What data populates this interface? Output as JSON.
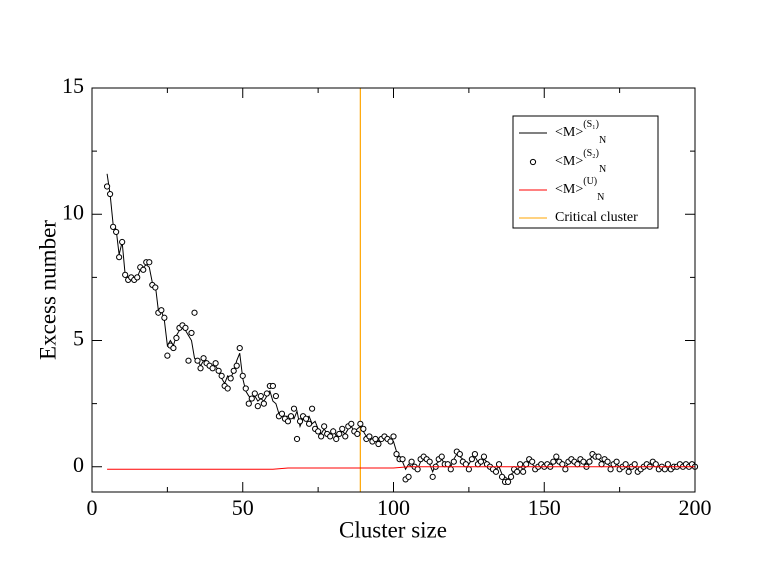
{
  "chart_data": {
    "type": "line",
    "xlabel": "Cluster size",
    "ylabel": "Excess number",
    "xlim": [
      0,
      200
    ],
    "xticks": [
      0,
      50,
      100,
      150,
      200
    ],
    "xminor": [
      25,
      75,
      125,
      175
    ],
    "ylim": [
      -1,
      15
    ],
    "yticks": [
      0,
      5,
      10,
      15
    ],
    "yminor": [
      2.5,
      7.5,
      12.5
    ],
    "legend": "upper right",
    "x": [
      5,
      6,
      7,
      8,
      9,
      10,
      11,
      12,
      13,
      14,
      15,
      16,
      17,
      18,
      19,
      20,
      21,
      22,
      23,
      24,
      25,
      26,
      27,
      28,
      29,
      30,
      31,
      32,
      33,
      34,
      35,
      36,
      37,
      38,
      39,
      40,
      41,
      42,
      43,
      44,
      45,
      46,
      47,
      48,
      49,
      50,
      51,
      52,
      53,
      54,
      55,
      56,
      57,
      58,
      59,
      60,
      61,
      62,
      63,
      64,
      65,
      66,
      67,
      68,
      69,
      70,
      71,
      72,
      73,
      74,
      75,
      76,
      77,
      78,
      79,
      80,
      81,
      82,
      83,
      84,
      85,
      86,
      87,
      88,
      89,
      90,
      91,
      92,
      93,
      94,
      95,
      96,
      97,
      98,
      99,
      100,
      101,
      102,
      103,
      104,
      105,
      106,
      107,
      108,
      109,
      110,
      111,
      112,
      113,
      114,
      115,
      116,
      117,
      118,
      119,
      120,
      121,
      122,
      123,
      124,
      125,
      126,
      127,
      128,
      129,
      130,
      131,
      132,
      133,
      134,
      135,
      136,
      137,
      138,
      139,
      140,
      141,
      142,
      143,
      144,
      145,
      146,
      147,
      148,
      149,
      150,
      151,
      152,
      153,
      154,
      155,
      156,
      157,
      158,
      159,
      160,
      161,
      162,
      163,
      164,
      165,
      166,
      167,
      168,
      169,
      170,
      171,
      172,
      173,
      174,
      175,
      176,
      177,
      178,
      179,
      180,
      181,
      182,
      183,
      184,
      185,
      186,
      187,
      188,
      189,
      190,
      191,
      192,
      193,
      194,
      195,
      196,
      197,
      198,
      199,
      200
    ],
    "series": [
      {
        "name": "<M>",
        "name_sup": "(S₁)",
        "name_sub": "N",
        "style": "line",
        "color": "#000000",
        "values": [
          11.6,
          10.8,
          9.6,
          9.4,
          8.4,
          8.9,
          7.6,
          7.5,
          7.5,
          7.5,
          7.5,
          7.8,
          7.9,
          8.0,
          7.9,
          7.3,
          7.2,
          6.2,
          6.2,
          5.8,
          4.8,
          5.0,
          4.8,
          5.2,
          5.4,
          5.5,
          5.4,
          5.2,
          5.0,
          4.3,
          4.2,
          4.0,
          4.2,
          4.2,
          4.0,
          3.9,
          4.0,
          3.8,
          3.5,
          3.3,
          3.6,
          3.5,
          3.8,
          4.2,
          4.5,
          3.5,
          3.0,
          2.8,
          2.7,
          2.8,
          2.6,
          2.7,
          2.6,
          2.8,
          3.0,
          2.6,
          2.5,
          2.1,
          2.0,
          2.0,
          2.0,
          2.1,
          1.9,
          2.2,
          1.6,
          1.9,
          1.9,
          2.0,
          1.7,
          1.8,
          1.5,
          1.3,
          1.5,
          1.3,
          1.3,
          1.5,
          1.2,
          1.3,
          1.4,
          1.3,
          1.5,
          1.6,
          1.4,
          1.5,
          1.6,
          1.4,
          1.2,
          1.1,
          1.1,
          1.2,
          1.0,
          1.1,
          1.1,
          1.1,
          1.0,
          1.0,
          0.6,
          0.4,
          0.2,
          -0.1,
          0.1,
          0.0,
          0.1,
          -0.1,
          0.2,
          0.3,
          0.2,
          0.1,
          -0.2,
          0.1,
          0.2,
          0.3,
          0.1,
          0.2,
          0.0,
          0.3,
          0.5,
          0.4,
          0.3,
          0.2,
          0.1,
          0.3,
          0.4,
          0.2,
          0.1,
          0.3,
          0.2,
          0.1,
          0.0,
          -0.1,
          0.0,
          -0.3,
          -0.4,
          -0.5,
          -0.3,
          -0.2,
          -0.1,
          0.0,
          -0.1,
          0.0,
          0.2,
          0.1,
          0.0,
          0.1,
          0.0,
          0.1,
          0.0,
          0.1,
          0.2,
          0.3,
          0.1,
          0.2,
          0.0,
          0.1,
          0.2,
          0.1,
          0.2,
          0.3,
          0.2,
          0.1,
          0.3,
          0.4,
          0.5,
          0.3,
          0.2,
          0.3,
          0.1,
          0.0,
          0.2,
          0.1,
          0.0,
          0.1,
          0.0,
          -0.1,
          0.1,
          0.0,
          -0.1,
          0.0,
          0.1,
          0.0,
          0.1,
          0.2,
          0.1,
          0.0,
          -0.1,
          0.0,
          0.1,
          0.0,
          -0.1,
          0.0,
          0.0,
          0.1,
          0.0,
          0.1,
          0.0,
          0.0
        ]
      },
      {
        "name": "<M>",
        "name_sup": "(S₂)",
        "name_sub": "N",
        "style": "circle",
        "color": "#000000",
        "values": [
          11.1,
          10.8,
          9.5,
          9.3,
          8.3,
          8.9,
          7.6,
          7.4,
          7.5,
          7.4,
          7.5,
          7.9,
          7.8,
          8.1,
          8.1,
          7.2,
          7.1,
          6.1,
          6.2,
          5.9,
          4.4,
          4.8,
          4.7,
          5.1,
          5.5,
          5.6,
          5.5,
          4.2,
          5.3,
          6.1,
          4.2,
          3.9,
          4.3,
          4.1,
          4.0,
          3.9,
          4.1,
          3.8,
          3.6,
          3.2,
          3.1,
          3.5,
          3.8,
          4.0,
          4.7,
          3.6,
          3.1,
          2.5,
          2.7,
          2.9,
          2.4,
          2.8,
          2.5,
          2.9,
          3.2,
          3.2,
          2.8,
          2.0,
          2.1,
          1.9,
          1.8,
          2.0,
          2.3,
          1.1,
          1.8,
          2.0,
          1.9,
          1.7,
          2.3,
          1.5,
          1.4,
          1.2,
          1.6,
          1.3,
          1.2,
          1.4,
          1.1,
          1.3,
          1.5,
          1.2,
          1.6,
          1.7,
          1.4,
          1.3,
          1.7,
          1.5,
          1.1,
          1.2,
          1.0,
          1.1,
          0.9,
          1.1,
          1.2,
          1.1,
          1.0,
          1.2,
          0.5,
          0.3,
          0.3,
          -0.5,
          -0.4,
          0.2,
          0.0,
          -0.1,
          0.3,
          0.4,
          0.3,
          0.2,
          -0.4,
          0.0,
          0.3,
          0.4,
          0.1,
          0.1,
          -0.1,
          0.2,
          0.6,
          0.5,
          0.2,
          0.1,
          -0.1,
          0.3,
          0.5,
          0.1,
          0.2,
          0.4,
          0.1,
          0.0,
          -0.1,
          -0.2,
          0.1,
          -0.4,
          -0.6,
          -0.6,
          -0.4,
          -0.1,
          -0.2,
          0.1,
          -0.2,
          0.1,
          0.3,
          0.2,
          -0.1,
          0.0,
          0.1,
          0.0,
          0.1,
          0.0,
          0.2,
          0.4,
          0.2,
          0.1,
          -0.1,
          0.2,
          0.3,
          0.2,
          0.1,
          0.3,
          0.2,
          0.0,
          0.2,
          0.5,
          0.4,
          0.4,
          0.1,
          0.3,
          0.2,
          -0.1,
          0.1,
          0.2,
          -0.1,
          0.0,
          0.1,
          -0.2,
          0.0,
          0.1,
          -0.2,
          -0.1,
          0.0,
          0.1,
          0.0,
          0.2,
          0.1,
          -0.1,
          0.0,
          -0.1,
          0.1,
          -0.1,
          0.0,
          0.0,
          0.1,
          0.0,
          0.1,
          0.0,
          0.1,
          0.0
        ]
      },
      {
        "name": "<M>",
        "name_sup": "(U)",
        "name_sub": "N",
        "style": "line",
        "color": "#ff0000",
        "x": [
          5,
          10,
          15,
          20,
          25,
          30,
          35,
          40,
          45,
          50,
          55,
          60,
          65,
          70,
          75,
          80,
          85,
          90,
          95,
          100,
          105,
          110,
          115,
          120,
          125,
          130,
          135,
          140,
          145,
          150,
          155,
          160,
          165,
          170,
          175,
          180,
          185,
          190,
          195,
          200
        ],
        "values": [
          -0.1,
          -0.1,
          -0.1,
          -0.1,
          -0.1,
          -0.1,
          -0.1,
          -0.1,
          -0.1,
          -0.1,
          -0.1,
          -0.1,
          -0.05,
          -0.05,
          -0.05,
          -0.05,
          -0.05,
          -0.05,
          -0.05,
          -0.05,
          0,
          0,
          0,
          0,
          0,
          0,
          0,
          0,
          0,
          0,
          0,
          0,
          0,
          0,
          0,
          0,
          0,
          0,
          0,
          0
        ]
      }
    ],
    "vline": {
      "x": 89,
      "color": "#ffa500",
      "label": "Critical cluster"
    }
  }
}
